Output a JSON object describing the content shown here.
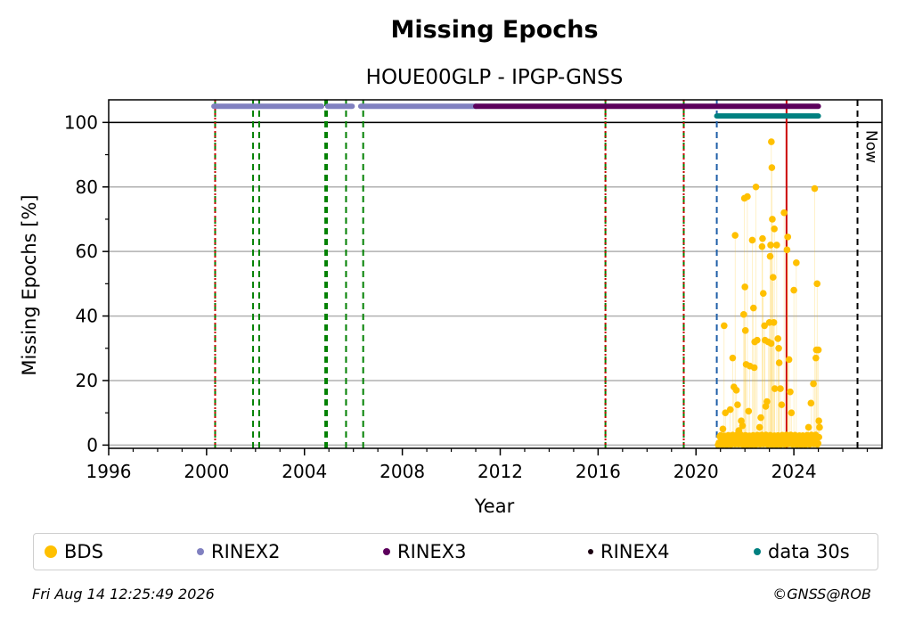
{
  "chart_data": {
    "type": "scatter",
    "title": "Missing Epochs",
    "subtitle": "HOUE00GLP - IPGP-GNSS",
    "xlabel": "Year",
    "ylabel": "Missing Epochs [%]",
    "xlim": [
      1996,
      2027.6
    ],
    "ylim": [
      -1,
      107
    ],
    "xticks": [
      1996,
      2000,
      2004,
      2008,
      2012,
      2016,
      2020,
      2024
    ],
    "yticks": [
      0,
      20,
      40,
      60,
      80,
      100
    ],
    "grid": true,
    "legend_position": "bottom",
    "now_label": "Now",
    "now_x": 2026.6,
    "reference_line_y": 100,
    "event_lines": [
      {
        "x": 2000.35,
        "color": "#008000",
        "style": "dashed"
      },
      {
        "x": 2000.35,
        "color": "#cc0000",
        "style": "dotted"
      },
      {
        "x": 2001.9,
        "color": "#008000",
        "style": "dashed"
      },
      {
        "x": 2002.15,
        "color": "#008000",
        "style": "dashed"
      },
      {
        "x": 2004.85,
        "color": "#008000",
        "style": "dashed"
      },
      {
        "x": 2004.92,
        "color": "#008000",
        "style": "dashed"
      },
      {
        "x": 2005.7,
        "color": "#008000",
        "style": "dashed"
      },
      {
        "x": 2006.4,
        "color": "#008000",
        "style": "dashed"
      },
      {
        "x": 2016.3,
        "color": "#008000",
        "style": "dashed"
      },
      {
        "x": 2016.3,
        "color": "#cc0000",
        "style": "dotted"
      },
      {
        "x": 2019.5,
        "color": "#008000",
        "style": "dashed"
      },
      {
        "x": 2019.5,
        "color": "#cc0000",
        "style": "dotted"
      },
      {
        "x": 2020.85,
        "color": "#1f5fa8",
        "style": "dashed"
      },
      {
        "x": 2023.7,
        "color": "#cc0000",
        "style": "solid"
      },
      {
        "x": 2026.6,
        "color": "#000000",
        "style": "dashed"
      }
    ],
    "availability": [
      {
        "series": "RINEX2",
        "y": 105,
        "color": "#8080c0",
        "ranges": [
          [
            2000.3,
            2004.7
          ],
          [
            2004.95,
            2005.95
          ],
          [
            2006.3,
            2011.0
          ]
        ]
      },
      {
        "series": "RINEX3",
        "y": 105,
        "color": "#5c005c",
        "ranges": [
          [
            2011.0,
            2025.0
          ]
        ]
      },
      {
        "series": "data 30s",
        "y": 102,
        "color": "#008080",
        "ranges": [
          [
            2020.85,
            2025.0
          ]
        ]
      }
    ],
    "series": [
      {
        "name": "BDS",
        "color": "#ffc000",
        "points": [
          [
            2021.0,
            2.5
          ],
          [
            2021.1,
            5.0
          ],
          [
            2021.15,
            37.0
          ],
          [
            2021.2,
            10.0
          ],
          [
            2021.4,
            11.0
          ],
          [
            2021.5,
            27.0
          ],
          [
            2021.55,
            18.0
          ],
          [
            2021.6,
            65.0
          ],
          [
            2021.65,
            17.0
          ],
          [
            2021.7,
            12.5
          ],
          [
            2021.75,
            4.5
          ],
          [
            2021.85,
            7.5
          ],
          [
            2021.9,
            6.0
          ],
          [
            2021.95,
            40.5
          ],
          [
            2021.98,
            76.5
          ],
          [
            2022.0,
            49.0
          ],
          [
            2022.02,
            35.5
          ],
          [
            2022.05,
            25.0
          ],
          [
            2022.1,
            77.0
          ],
          [
            2022.15,
            10.5
          ],
          [
            2022.2,
            24.5
          ],
          [
            2022.3,
            63.5
          ],
          [
            2022.35,
            42.5
          ],
          [
            2022.38,
            24.0
          ],
          [
            2022.4,
            32.0
          ],
          [
            2022.45,
            80.0
          ],
          [
            2022.5,
            32.5
          ],
          [
            2022.6,
            5.5
          ],
          [
            2022.65,
            8.5
          ],
          [
            2022.7,
            61.5
          ],
          [
            2022.72,
            64.0
          ],
          [
            2022.75,
            47.0
          ],
          [
            2022.8,
            37.0
          ],
          [
            2022.82,
            32.5
          ],
          [
            2022.85,
            12.0
          ],
          [
            2022.9,
            13.5
          ],
          [
            2022.95,
            32.0
          ],
          [
            2023.0,
            38.0
          ],
          [
            2023.03,
            58.5
          ],
          [
            2023.05,
            62.0
          ],
          [
            2023.07,
            31.5
          ],
          [
            2023.08,
            94.0
          ],
          [
            2023.1,
            86.0
          ],
          [
            2023.12,
            70.0
          ],
          [
            2023.15,
            52.0
          ],
          [
            2023.18,
            38.0
          ],
          [
            2023.2,
            67.0
          ],
          [
            2023.22,
            17.5
          ],
          [
            2023.3,
            62.0
          ],
          [
            2023.35,
            33.0
          ],
          [
            2023.38,
            30.0
          ],
          [
            2023.4,
            25.5
          ],
          [
            2023.45,
            17.5
          ],
          [
            2023.5,
            12.5
          ],
          [
            2023.6,
            72.0
          ],
          [
            2023.75,
            64.5
          ],
          [
            2023.72,
            60.5
          ],
          [
            2023.8,
            26.5
          ],
          [
            2023.85,
            16.5
          ],
          [
            2023.9,
            10.0
          ],
          [
            2024.0,
            48.0
          ],
          [
            2024.1,
            56.5
          ],
          [
            2024.05,
            2.0
          ],
          [
            2024.2,
            1.5
          ],
          [
            2024.5,
            2.5
          ],
          [
            2024.6,
            5.5
          ],
          [
            2024.7,
            13.0
          ],
          [
            2024.8,
            19.0
          ],
          [
            2024.85,
            79.5
          ],
          [
            2024.9,
            27.0
          ],
          [
            2024.92,
            29.5
          ],
          [
            2024.95,
            50.0
          ],
          [
            2025.0,
            29.5
          ],
          [
            2025.02,
            7.5
          ],
          [
            2025.05,
            5.5
          ]
        ]
      },
      {
        "name": "RINEX2",
        "color": "#8080c0",
        "points": []
      },
      {
        "name": "RINEX3",
        "color": "#5c005c",
        "points": []
      },
      {
        "name": "RINEX4",
        "color": "#1a0010",
        "points": []
      },
      {
        "name": "data 30s",
        "color": "#008080",
        "points": []
      }
    ],
    "legend": [
      {
        "label": "BDS",
        "color": "#ffc000",
        "dot": 14
      },
      {
        "label": "RINEX2",
        "color": "#8080c0",
        "dot": 8
      },
      {
        "label": "RINEX3",
        "color": "#5c005c",
        "dot": 8
      },
      {
        "label": "RINEX4",
        "color": "#1a0010",
        "dot": 6
      },
      {
        "label": "data 30s",
        "color": "#008080",
        "dot": 8
      }
    ]
  },
  "footer": {
    "timestamp": "Fri Aug 14 12:25:49 2026",
    "copyright": "©GNSS@ROB"
  }
}
